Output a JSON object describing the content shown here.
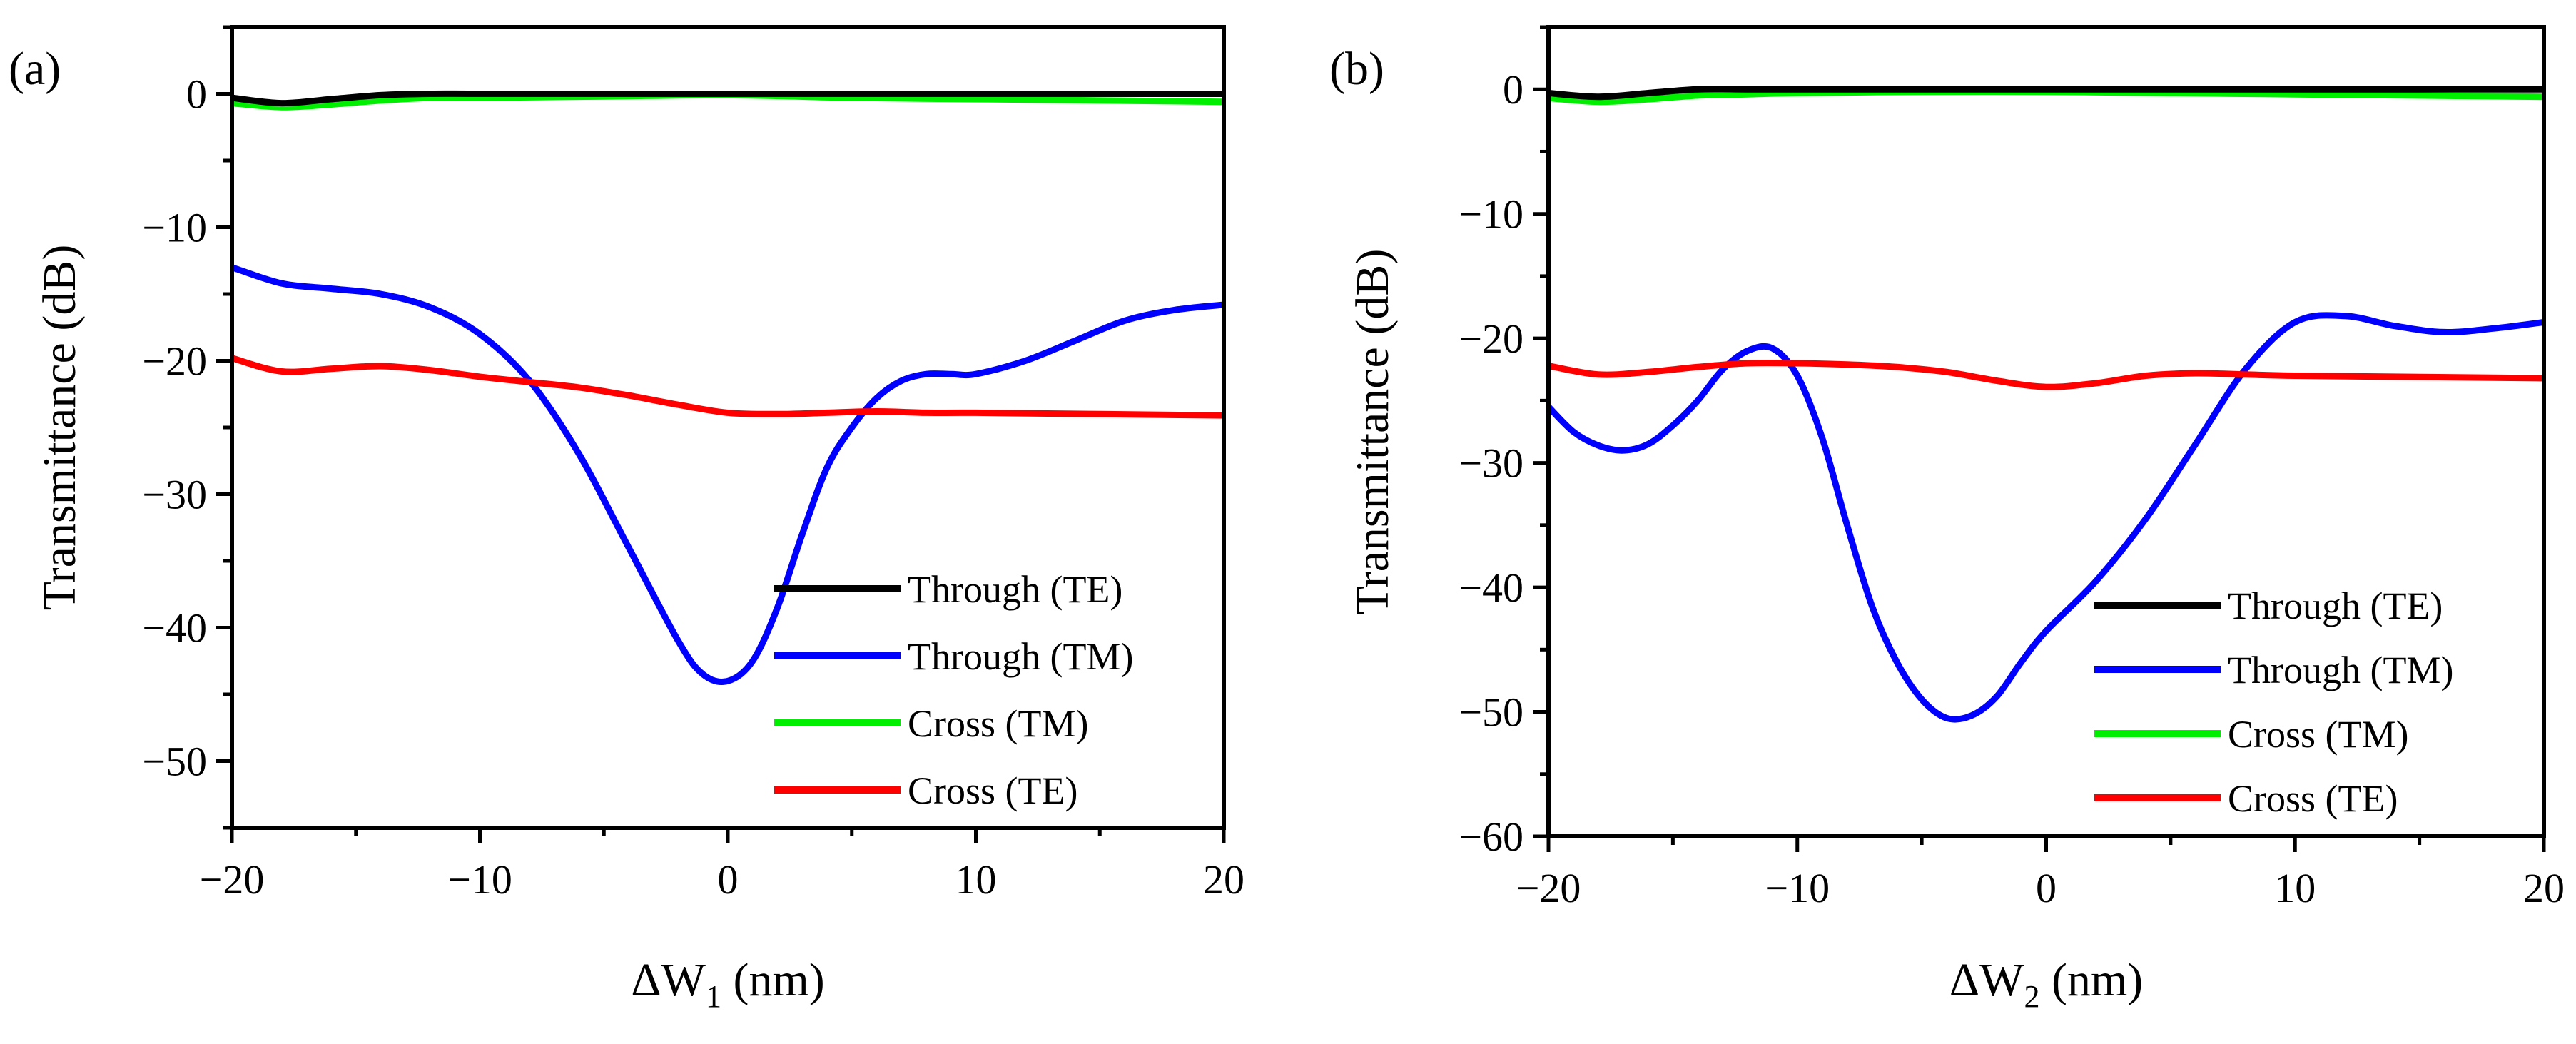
{
  "chart_data": [
    {
      "panel": "(a)",
      "type": "line",
      "xlabel": "ΔW",
      "xlabel_sub": "1",
      "xlabel_unit": " (nm)",
      "ylabel": "Transmittance (dB)",
      "xlim": [
        -20,
        20
      ],
      "ylim": [
        -55,
        5
      ],
      "xticks": [
        -20,
        -10,
        0,
        10,
        20
      ],
      "xtick_labels": [
        "−20",
        "−10",
        "0",
        "10",
        "20"
      ],
      "yticks": [
        0,
        -10,
        -20,
        -30,
        -40,
        -50
      ],
      "ytick_labels": [
        "0",
        "−10",
        "−20",
        "−30",
        "−40",
        "−50"
      ],
      "legend_position": "bottom-right",
      "series": [
        {
          "name": "Through (TE)",
          "color": "#000000",
          "x": [
            -20,
            -18,
            -16,
            -14,
            -12,
            -10,
            -5,
            0,
            5,
            10,
            15,
            20
          ],
          "y": [
            -0.3,
            -0.7,
            -0.4,
            -0.1,
            0,
            0,
            0,
            0,
            0,
            0,
            0,
            0
          ]
        },
        {
          "name": "Through (TM)",
          "color": "#0000ff",
          "x": [
            -20,
            -18,
            -16,
            -14,
            -12,
            -10,
            -8,
            -6,
            -4,
            -2,
            -1,
            0,
            1,
            2,
            3,
            4,
            5,
            6,
            7,
            8,
            9,
            10,
            12,
            14,
            16,
            18,
            20
          ],
          "y": [
            -13,
            -14.2,
            -14.6,
            -15,
            -16,
            -18,
            -21.5,
            -27,
            -34,
            -41,
            -43.5,
            -44,
            -42.5,
            -38.5,
            -33,
            -28,
            -25,
            -22.8,
            -21.5,
            -21,
            -21,
            -21,
            -20,
            -18.5,
            -17,
            -16.2,
            -15.8
          ]
        },
        {
          "name": "Cross (TM)",
          "color": "#00ee00",
          "x": [
            -20,
            -18,
            -16,
            -14,
            -12,
            -10,
            -5,
            0,
            5,
            10,
            15,
            20
          ],
          "y": [
            -0.7,
            -1,
            -0.8,
            -0.5,
            -0.3,
            -0.3,
            -0.2,
            -0.1,
            -0.3,
            -0.4,
            -0.5,
            -0.6
          ]
        },
        {
          "name": "Cross (TE)",
          "color": "#ff0000",
          "x": [
            -20,
            -18,
            -16,
            -14,
            -12,
            -10,
            -8,
            -6,
            -4,
            -2,
            0,
            2,
            4,
            6,
            8,
            10,
            15,
            20
          ],
          "y": [
            -19.8,
            -20.8,
            -20.6,
            -20.4,
            -20.7,
            -21.2,
            -21.6,
            -22,
            -22.6,
            -23.3,
            -23.9,
            -24,
            -23.9,
            -23.8,
            -23.9,
            -23.9,
            -24,
            -24.1
          ]
        }
      ]
    },
    {
      "panel": "(b)",
      "type": "line",
      "xlabel": "ΔW",
      "xlabel_sub": "2",
      "xlabel_unit": " (nm)",
      "ylabel": "Transmittance (dB)",
      "xlim": [
        -20,
        20
      ],
      "ylim": [
        -60,
        5
      ],
      "xticks": [
        -20,
        -10,
        0,
        10,
        20
      ],
      "xtick_labels": [
        "−20",
        "−10",
        "0",
        "10",
        "20"
      ],
      "yticks": [
        0,
        -10,
        -20,
        -30,
        -40,
        -50,
        -60
      ],
      "ytick_labels": [
        "0",
        "−10",
        "−20",
        "−30",
        "−40",
        "−50",
        "−60"
      ],
      "legend_position": "bottom-right",
      "series": [
        {
          "name": "Through (TE)",
          "color": "#000000",
          "x": [
            -20,
            -18,
            -16,
            -14,
            -12,
            -10,
            -5,
            0,
            5,
            10,
            15,
            20
          ],
          "y": [
            -0.3,
            -0.6,
            -0.3,
            0,
            0,
            0,
            0,
            0,
            0,
            0,
            0,
            0
          ]
        },
        {
          "name": "Through (TM)",
          "color": "#0000ff",
          "x": [
            -20,
            -19,
            -18,
            -17,
            -16,
            -15,
            -14,
            -13,
            -12,
            -11,
            -10,
            -9,
            -8,
            -7,
            -6,
            -5,
            -4,
            -3,
            -2,
            -1,
            0,
            2,
            4,
            6,
            8,
            10,
            12,
            14,
            16,
            18,
            20
          ],
          "y": [
            -25.5,
            -27.5,
            -28.6,
            -29,
            -28.5,
            -27,
            -25,
            -22.5,
            -21,
            -20.8,
            -23,
            -28,
            -35,
            -41.5,
            -46,
            -49,
            -50.5,
            -50.3,
            -48.8,
            -46,
            -43.5,
            -39.5,
            -34.5,
            -28.5,
            -22.5,
            -18.7,
            -18.2,
            -19,
            -19.5,
            -19.2,
            -18.7
          ]
        },
        {
          "name": "Cross (TM)",
          "color": "#00ee00",
          "x": [
            -20,
            -18,
            -16,
            -14,
            -12,
            -10,
            -5,
            0,
            5,
            10,
            15,
            20
          ],
          "y": [
            -0.7,
            -1,
            -0.8,
            -0.5,
            -0.4,
            -0.3,
            -0.2,
            -0.2,
            -0.3,
            -0.4,
            -0.5,
            -0.6
          ]
        },
        {
          "name": "Cross (TE)",
          "color": "#ff0000",
          "x": [
            -20,
            -18,
            -16,
            -14,
            -12,
            -10,
            -8,
            -6,
            -4,
            -2,
            0,
            2,
            4,
            6,
            8,
            10,
            15,
            20
          ],
          "y": [
            -22.2,
            -22.9,
            -22.7,
            -22.3,
            -22,
            -22,
            -22.1,
            -22.3,
            -22.7,
            -23.4,
            -23.9,
            -23.6,
            -23,
            -22.8,
            -22.9,
            -23,
            -23.1,
            -23.2
          ]
        }
      ]
    }
  ]
}
